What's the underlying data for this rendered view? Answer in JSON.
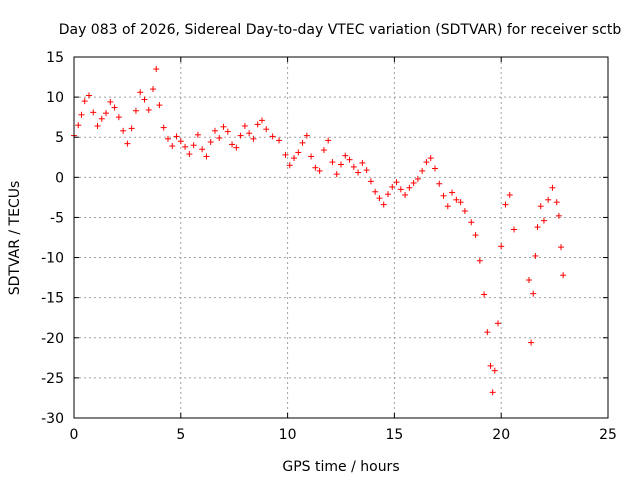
{
  "chart_data": {
    "type": "scatter",
    "title": "Day 083 of 2026, Sidereal Day-to-day VTEC variation (SDTVAR) for receiver sctb",
    "xlabel": "GPS time / hours",
    "ylabel": "SDTVAR / TECUs",
    "xlim": [
      0,
      25
    ],
    "ylim": [
      -30,
      15
    ],
    "xticks": [
      "0",
      "5",
      "10",
      "15",
      "20",
      "25"
    ],
    "yticks": [
      "15",
      "10",
      "5",
      "0",
      "-5",
      "-10",
      "-15",
      "-20",
      "-25",
      "-30"
    ],
    "grid": true,
    "marker": "+",
    "color": "#ff0000",
    "series": [
      {
        "name": "SDTVAR",
        "x": [
          0.0,
          0.2,
          0.35,
          0.5,
          0.7,
          0.9,
          1.1,
          1.3,
          1.5,
          1.7,
          1.9,
          2.1,
          2.3,
          2.5,
          2.7,
          2.9,
          3.1,
          3.3,
          3.5,
          3.7,
          3.85,
          4.0,
          4.2,
          4.4,
          4.6,
          4.8,
          5.0,
          5.2,
          5.4,
          5.6,
          5.8,
          6.0,
          6.2,
          6.4,
          6.6,
          6.8,
          7.0,
          7.2,
          7.4,
          7.6,
          7.8,
          8.0,
          8.2,
          8.4,
          8.6,
          8.8,
          9.0,
          9.3,
          9.6,
          9.9,
          10.1,
          10.3,
          10.5,
          10.7,
          10.9,
          11.1,
          11.3,
          11.5,
          11.7,
          11.9,
          12.1,
          12.3,
          12.5,
          12.7,
          12.9,
          13.1,
          13.3,
          13.5,
          13.7,
          13.9,
          14.1,
          14.3,
          14.5,
          14.7,
          14.9,
          15.1,
          15.3,
          15.5,
          15.7,
          15.9,
          16.1,
          16.3,
          16.5,
          16.7,
          16.9,
          17.1,
          17.3,
          17.5,
          17.7,
          17.9,
          18.1,
          18.3,
          18.6,
          18.8,
          19.0,
          19.2,
          19.35,
          19.5,
          19.6,
          19.7,
          19.85,
          20.0,
          20.2,
          20.4,
          20.6,
          21.3,
          21.4,
          21.5,
          21.6,
          21.7,
          21.85,
          22.0,
          22.2,
          22.4,
          22.6,
          22.7,
          22.8,
          22.9
        ],
        "y": [
          5.2,
          6.5,
          7.8,
          9.5,
          10.2,
          8.1,
          6.4,
          7.3,
          8.0,
          9.4,
          8.7,
          7.5,
          5.8,
          4.2,
          6.1,
          8.3,
          10.6,
          9.7,
          8.4,
          11.0,
          13.5,
          9.0,
          6.2,
          4.8,
          3.9,
          5.1,
          4.5,
          3.8,
          2.9,
          4.0,
          5.3,
          3.5,
          2.6,
          4.4,
          5.8,
          4.9,
          6.3,
          5.7,
          4.1,
          3.7,
          5.2,
          6.4,
          5.5,
          4.8,
          6.6,
          7.1,
          6.0,
          5.1,
          4.6,
          2.8,
          1.5,
          2.4,
          3.1,
          4.3,
          5.2,
          2.6,
          1.2,
          0.8,
          3.4,
          4.6,
          1.9,
          0.4,
          1.6,
          2.7,
          2.2,
          1.3,
          0.6,
          1.8,
          0.9,
          -0.5,
          -1.8,
          -2.6,
          -3.4,
          -2.1,
          -1.2,
          -0.6,
          -1.5,
          -2.2,
          -1.3,
          -0.7,
          -0.2,
          0.8,
          1.9,
          2.4,
          1.1,
          -0.8,
          -2.3,
          -3.6,
          -1.9,
          -2.8,
          -3.1,
          -4.2,
          -5.6,
          -7.2,
          -10.4,
          -14.6,
          -19.3,
          -23.5,
          -26.8,
          -24.1,
          -18.2,
          -8.6,
          -3.4,
          -2.2,
          -6.5,
          -12.8,
          -20.6,
          -14.5,
          -9.8,
          -6.2,
          -3.6,
          -5.4,
          -2.8,
          -1.3,
          -3.1,
          -4.8,
          -8.7,
          -12.2
        ]
      }
    ]
  }
}
